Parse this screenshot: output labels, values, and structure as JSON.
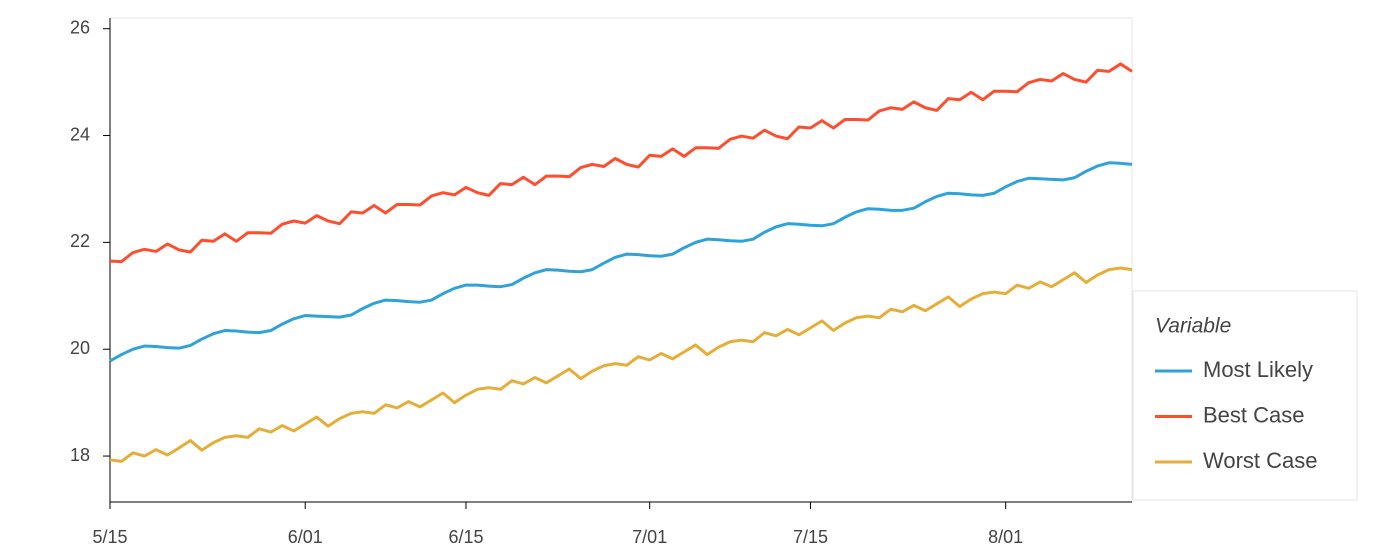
{
  "chart_data": {
    "type": "line",
    "categories": [
      "5/15",
      null,
      null,
      null,
      null,
      null,
      null,
      null,
      null,
      null,
      null,
      null,
      null,
      null,
      null,
      null,
      null,
      "6/01",
      null,
      null,
      null,
      null,
      null,
      null,
      null,
      null,
      null,
      null,
      null,
      null,
      null,
      "6/15",
      null,
      null,
      null,
      null,
      null,
      null,
      null,
      null,
      null,
      null,
      null,
      null,
      null,
      null,
      null,
      "7/01",
      null,
      null,
      null,
      null,
      null,
      null,
      null,
      null,
      null,
      null,
      null,
      null,
      null,
      "7/15",
      null,
      null,
      null,
      null,
      null,
      null,
      null,
      null,
      null,
      null,
      null,
      null,
      null,
      null,
      null,
      null,
      "8/01",
      null,
      null,
      null,
      null,
      null,
      null,
      null,
      null,
      null,
      null,
      null
    ],
    "ylim": [
      17.14,
      26.2
    ],
    "yticks": [
      18,
      20,
      22,
      24,
      26
    ],
    "legend": "right",
    "legend_title": "Variable",
    "series": [
      {
        "name": "Most Likely",
        "color": "#30a2da",
        "values": [
          19.78,
          19.9,
          20.0,
          20.06,
          20.05,
          20.03,
          20.02,
          20.07,
          20.19,
          20.29,
          20.35,
          20.34,
          20.32,
          20.31,
          20.35,
          20.47,
          20.57,
          20.63,
          20.62,
          20.61,
          20.6,
          20.64,
          20.76,
          20.86,
          20.92,
          20.91,
          20.89,
          20.88,
          20.92,
          21.04,
          21.14,
          21.2,
          21.2,
          21.18,
          21.17,
          21.21,
          21.33,
          21.43,
          21.49,
          21.48,
          21.46,
          21.45,
          21.49,
          21.61,
          21.72,
          21.78,
          21.77,
          21.75,
          21.74,
          21.78,
          21.9,
          22.0,
          22.06,
          22.05,
          22.03,
          22.02,
          22.06,
          22.19,
          22.29,
          22.35,
          22.34,
          22.32,
          22.31,
          22.35,
          22.47,
          22.57,
          22.63,
          22.62,
          22.6,
          22.6,
          22.64,
          22.76,
          22.86,
          22.92,
          22.91,
          22.89,
          22.88,
          22.92,
          23.04,
          23.14,
          23.2,
          23.19,
          23.18,
          23.17,
          23.21,
          23.33,
          23.43,
          23.49,
          23.48,
          23.46
        ]
      },
      {
        "name": "Best Case",
        "color": "#fc4f30",
        "values": [
          21.65,
          21.64,
          21.81,
          21.87,
          21.83,
          21.97,
          21.86,
          21.82,
          22.04,
          22.02,
          22.16,
          22.02,
          22.18,
          22.18,
          22.17,
          22.34,
          22.4,
          22.36,
          22.5,
          22.4,
          22.35,
          22.57,
          22.55,
          22.69,
          22.55,
          22.71,
          22.71,
          22.7,
          22.87,
          22.93,
          22.89,
          23.03,
          22.93,
          22.88,
          23.1,
          23.08,
          23.22,
          23.08,
          23.24,
          23.24,
          23.23,
          23.4,
          23.46,
          23.42,
          23.57,
          23.46,
          23.41,
          23.63,
          23.61,
          23.75,
          23.61,
          23.77,
          23.77,
          23.76,
          23.93,
          23.99,
          23.95,
          24.1,
          23.99,
          23.94,
          24.16,
          24.14,
          24.28,
          24.14,
          24.3,
          24.3,
          24.29,
          24.46,
          24.52,
          24.49,
          24.63,
          24.52,
          24.47,
          24.69,
          24.67,
          24.81,
          24.67,
          24.83,
          24.83,
          24.82,
          24.99,
          25.05,
          25.02,
          25.16,
          25.05,
          25.0,
          25.22,
          25.2,
          25.34,
          25.2
        ]
      },
      {
        "name": "Worst Case",
        "color": "#e5ae38",
        "values": [
          17.93,
          17.9,
          18.06,
          18.0,
          18.12,
          18.02,
          18.15,
          18.29,
          18.11,
          18.25,
          18.35,
          18.38,
          18.35,
          18.51,
          18.45,
          18.57,
          18.47,
          18.6,
          18.73,
          18.56,
          18.7,
          18.8,
          18.83,
          18.8,
          18.96,
          18.9,
          19.02,
          18.92,
          19.05,
          19.18,
          19.0,
          19.14,
          19.25,
          19.28,
          19.25,
          19.41,
          19.35,
          19.47,
          19.37,
          19.5,
          19.63,
          19.45,
          19.59,
          19.69,
          19.73,
          19.7,
          19.86,
          19.8,
          19.92,
          19.82,
          19.95,
          20.08,
          19.9,
          20.04,
          20.14,
          20.17,
          20.14,
          20.31,
          20.25,
          20.37,
          20.27,
          20.4,
          20.53,
          20.35,
          20.49,
          20.59,
          20.62,
          20.59,
          20.75,
          20.7,
          20.82,
          20.72,
          20.85,
          20.98,
          20.8,
          20.94,
          21.04,
          21.07,
          21.04,
          21.2,
          21.14,
          21.26,
          21.17,
          21.3,
          21.43,
          21.25,
          21.39,
          21.49,
          21.52,
          21.49
        ]
      }
    ]
  }
}
